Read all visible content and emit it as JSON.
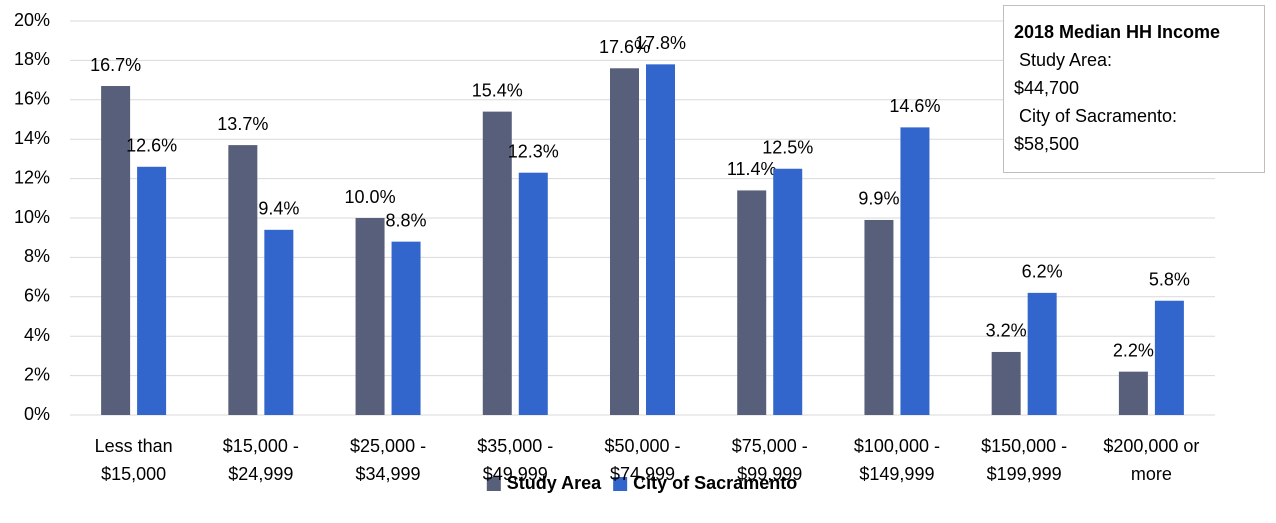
{
  "chart_data": {
    "type": "bar",
    "categories": [
      "Less than $15,000",
      "$15,000 - $24,999",
      "$25,000 - $34,999",
      "$35,000 - $49,999",
      "$50,000 - $74,999",
      "$75,000 - $99,999",
      "$100,000 - $149,999",
      "$150,000 - $199,999",
      "$200,000 or more"
    ],
    "series": [
      {
        "name": "Study Area",
        "color": "#575f7a",
        "values": [
          16.7,
          13.7,
          10.0,
          15.4,
          17.6,
          11.4,
          9.9,
          3.2,
          2.2
        ],
        "value_labels": [
          "16.7%",
          "13.7%",
          "10.0%",
          "15.4%",
          "17.6%",
          "11.4%",
          "9.9%",
          "3.2%",
          "2.2%"
        ]
      },
      {
        "name": "City of Sacramento",
        "color": "#3366cc",
        "values": [
          12.6,
          9.4,
          8.8,
          12.3,
          17.8,
          12.5,
          14.6,
          6.2,
          5.8
        ],
        "value_labels": [
          "12.6%",
          "9.4%",
          "8.8%",
          "12.3%",
          "17.8%",
          "12.5%",
          "14.6%",
          "6.2%",
          "5.8%"
        ]
      }
    ],
    "ylim": [
      0,
      20
    ],
    "yticks": [
      {
        "value": 0,
        "label": "0%"
      },
      {
        "value": 2,
        "label": "2%"
      },
      {
        "value": 4,
        "label": "4%"
      },
      {
        "value": 6,
        "label": "6%"
      },
      {
        "value": 8,
        "label": "8%"
      },
      {
        "value": 10,
        "label": "10%"
      },
      {
        "value": 12,
        "label": "12%"
      },
      {
        "value": 14,
        "label": "14%"
      },
      {
        "value": 16,
        "label": "16%"
      },
      {
        "value": 18,
        "label": "18%"
      },
      {
        "value": 20,
        "label": "20%"
      }
    ],
    "grid": true,
    "legend": "bottom",
    "annotation": {
      "title": "2018 Median HH Income",
      "lines": [
        "Study Area:",
        "$44,700",
        "City of Sacramento:",
        "$58,500"
      ]
    }
  }
}
